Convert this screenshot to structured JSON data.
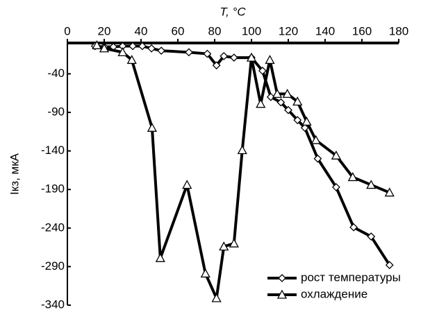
{
  "chart_data": {
    "type": "line",
    "x_label": "T, °C",
    "y_label": "Iкз, мкА",
    "xlim": [
      0,
      180
    ],
    "xticks": [
      0,
      20,
      40,
      60,
      80,
      100,
      120,
      140,
      160,
      180
    ],
    "ylim": [
      -340,
      0
    ],
    "yticks": [
      -40,
      -90,
      -140,
      -190,
      -240,
      -290,
      -340
    ],
    "legend": "lower right",
    "series": [
      {
        "name": "рост температуры",
        "color": "#000000",
        "marker": "diamond",
        "x": [
          15,
          20,
          25,
          30,
          35.5,
          40.7,
          45.7,
          51,
          66,
          76,
          81,
          85,
          90.5,
          100,
          106,
          110.5,
          116,
          120,
          125,
          129,
          136,
          146,
          155.5,
          165,
          175
        ],
        "values": [
          -4,
          -5,
          -5,
          -4,
          -4,
          -4,
          -7,
          -10,
          -12,
          -14,
          -29,
          -17,
          -19,
          -19,
          -36,
          -70,
          -77,
          -87,
          -100,
          -110,
          -150,
          -187,
          -239,
          -251,
          -288
        ]
      },
      {
        "name": "охлаждение",
        "color": "#000000",
        "marker": "triangle",
        "x": [
          16,
          20,
          30,
          35,
          46,
          50.5,
          65,
          75,
          81,
          85,
          90.5,
          95,
          100,
          105,
          110,
          114,
          119.5,
          125,
          130,
          135,
          146,
          155,
          165,
          175
        ],
        "values": [
          -3,
          -7,
          -12,
          -22,
          -110,
          -279,
          -184,
          -299,
          -331,
          -264,
          -260,
          -139,
          -19,
          -79,
          -22,
          -66,
          -66,
          -76,
          -102,
          -126,
          -146,
          -174,
          -184,
          -194
        ]
      }
    ]
  }
}
